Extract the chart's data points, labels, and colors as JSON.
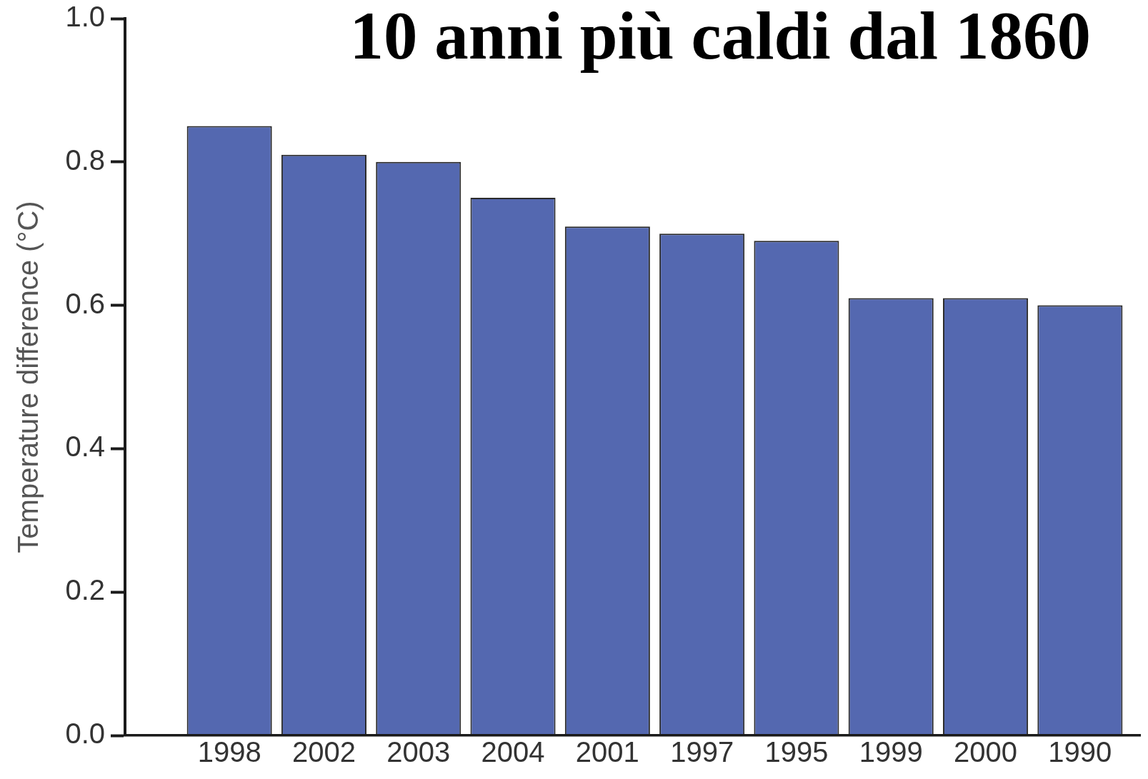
{
  "chart_data": {
    "type": "bar",
    "title": "10 anni più caldi dal 1860",
    "ylabel": "Temperature difference (°C)",
    "categories": [
      "1998",
      "2002",
      "2003",
      "2004",
      "2001",
      "1997",
      "1995",
      "1999",
      "2000",
      "1990"
    ],
    "values": [
      0.85,
      0.81,
      0.8,
      0.75,
      0.71,
      0.7,
      0.69,
      0.61,
      0.61,
      0.6
    ],
    "color": "#5468b0",
    "ylim": [
      0,
      1
    ],
    "yticks": [
      {
        "value": 0,
        "label": "0.0"
      },
      0.2,
      0.4,
      0.6,
      0.8,
      {
        "value": 1,
        "label": "1.0"
      }
    ],
    "grid": false
  }
}
